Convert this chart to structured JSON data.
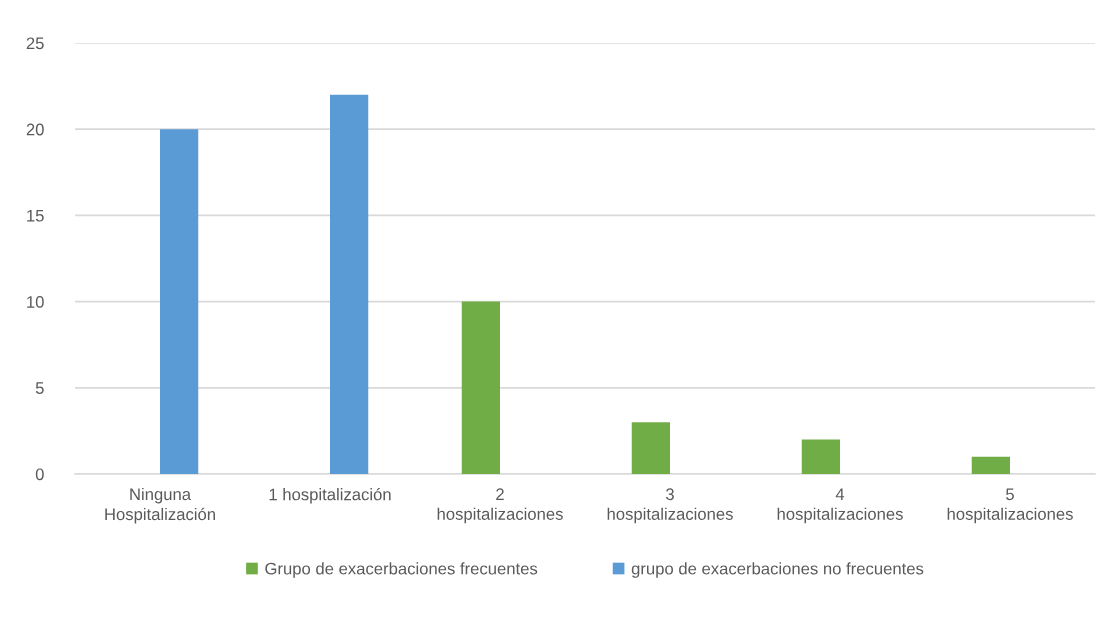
{
  "chart_data": {
    "type": "bar",
    "categories": [
      "Ninguna\nHospitalización",
      "1 hospitalización",
      "2\nhospitalizaciones",
      "3\nhospitalizaciones",
      "4\nhospitalizaciones",
      "5\nhospitalizaciones"
    ],
    "series": [
      {
        "name": "Grupo de exacerbaciones frecuentes",
        "color": "#70ad47",
        "values": [
          null,
          null,
          10,
          3,
          2,
          1
        ]
      },
      {
        "name": "grupo de exacerbaciones no frecuentes",
        "color": "#5b9bd5",
        "values": [
          20,
          22,
          null,
          null,
          null,
          null
        ]
      }
    ],
    "ylim": [
      0,
      25
    ],
    "yticks": [
      0,
      5,
      10,
      15,
      20,
      25
    ],
    "grid": "y",
    "legend": "bottom"
  }
}
